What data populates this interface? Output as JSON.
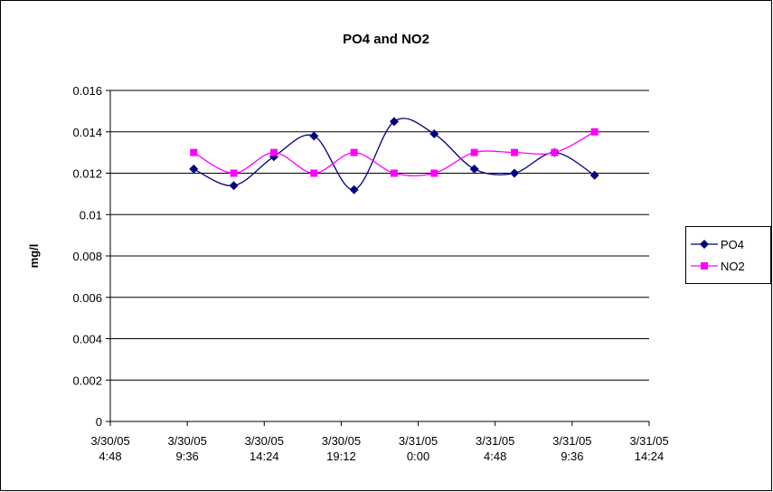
{
  "chart_data": {
    "type": "line",
    "title": "PO4 and NO2",
    "y_label": "mg/l",
    "x": [
      10,
      12.5,
      15,
      17.5,
      20,
      22.5,
      25,
      27.5,
      30,
      32.5,
      35
    ],
    "series": [
      {
        "name": "PO4",
        "color": "#000080",
        "marker": "diamond",
        "values": [
          0.0122,
          0.0114,
          0.0128,
          0.0138,
          0.0112,
          0.0145,
          0.0139,
          0.0122,
          0.012,
          0.013,
          0.0119
        ]
      },
      {
        "name": "NO2",
        "color": "#ff00ff",
        "marker": "square",
        "values": [
          0.013,
          0.012,
          0.013,
          0.012,
          0.013,
          0.012,
          0.012,
          0.013,
          0.013,
          0.013,
          0.014
        ]
      }
    ],
    "smooth": true,
    "xlim": [
      4.8,
      38.4
    ],
    "xticks": [
      {
        "value": 4.8,
        "label": "3/30/05\n4:48"
      },
      {
        "value": 9.6,
        "label": "3/30/05\n9:36"
      },
      {
        "value": 14.4,
        "label": "3/30/05\n14:24"
      },
      {
        "value": 19.2,
        "label": "3/30/05\n19:12"
      },
      {
        "value": 24,
        "label": "3/31/05\n0:00"
      },
      {
        "value": 28.8,
        "label": "3/31/05\n4:48"
      },
      {
        "value": 33.6,
        "label": "3/31/05\n9:36"
      },
      {
        "value": 38.4,
        "label": "3/31/05\n14:24"
      }
    ],
    "ylim": [
      0,
      0.016
    ],
    "yticks": [
      0,
      0.002,
      0.004,
      0.006,
      0.008,
      0.01,
      0.012,
      0.014,
      0.016
    ],
    "grid": true,
    "legend": "right"
  }
}
